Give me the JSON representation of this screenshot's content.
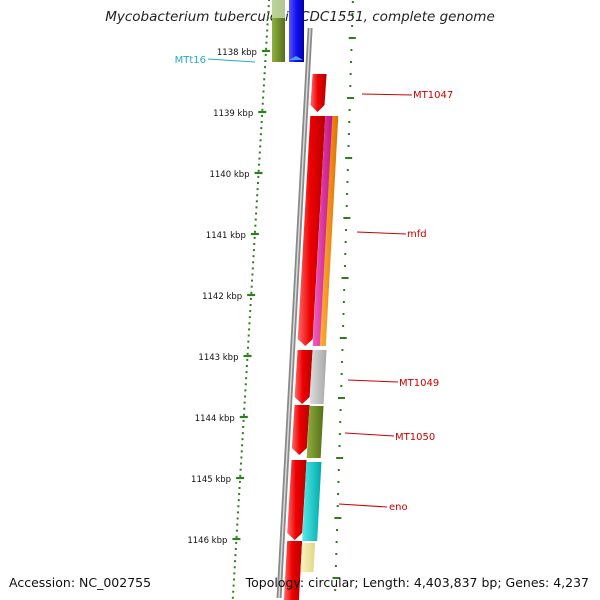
{
  "title": "Mycobacterium tuberculosis CDC1551, complete genome",
  "footer": {
    "accession": "Accession: NC_002755",
    "summary": "Topology: circular; Length: 4,403,837 bp; Genes: 4,237"
  },
  "colors": {
    "ruler": "#2e7d1e",
    "backbone": "#888888",
    "gene_red": "#ee0000",
    "label_red": "#cc0000",
    "label_cyan": "#22aacc",
    "trna_blue": "#1111ee",
    "magenta": "#dd1f9a",
    "orange": "#ff8800",
    "olive": "#6b8e23",
    "gray": "#bbbbbb",
    "cyan": "#11cccc",
    "pale_yellow": "#f0e89c",
    "light_green": "#b8d88a"
  },
  "ruler_labels": [
    "1138 kbp",
    "1139 kbp",
    "1140 kbp",
    "1141 kbp",
    "1142 kbp",
    "1143 kbp",
    "1144 kbp",
    "1145 kbp",
    "1146 kbp"
  ],
  "gene_labels": [
    {
      "text": "MTt16",
      "color_key": "label_cyan"
    },
    {
      "text": "MT1047",
      "color_key": "label_red"
    },
    {
      "text": "mfd",
      "color_key": "label_red"
    },
    {
      "text": "MT1049",
      "color_key": "label_red"
    },
    {
      "text": "MT1050",
      "color_key": "label_red"
    },
    {
      "text": "eno",
      "color_key": "label_red"
    }
  ]
}
